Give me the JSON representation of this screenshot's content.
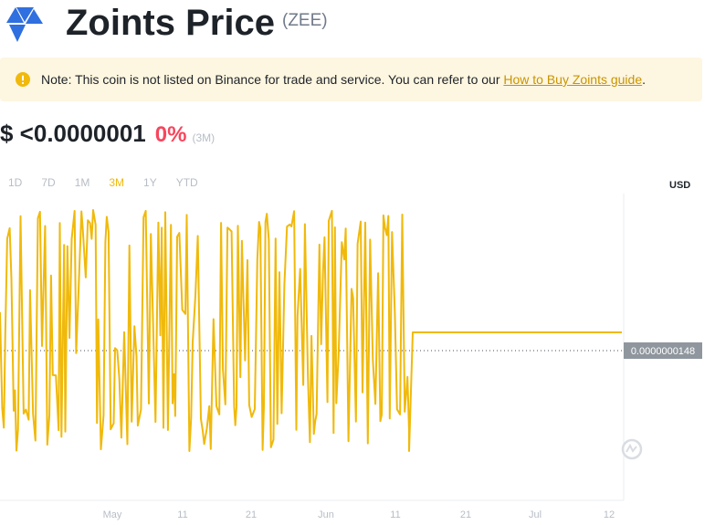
{
  "header": {
    "title": "Zoints Price",
    "symbol": "(ZEE)",
    "logo_icon": "zoints-logo-icon",
    "brand_color": "#2f6fe0"
  },
  "notice": {
    "icon": "warning-icon",
    "text": "Note: This coin is not listed on Binance for trade and service. You can refer to our ",
    "link": "How to Buy Zoints guide",
    "suffix": "."
  },
  "price": {
    "value": "$ <0.0000001",
    "change": "0%",
    "period": "(3M)"
  },
  "ranges": [
    {
      "label": "1D",
      "active": false
    },
    {
      "label": "7D",
      "active": false
    },
    {
      "label": "1M",
      "active": false
    },
    {
      "label": "3M",
      "active": true
    },
    {
      "label": "1Y",
      "active": false
    },
    {
      "label": "YTD",
      "active": false
    }
  ],
  "currency": "USD",
  "colors": {
    "line": "#f0b90b",
    "down": "#f6465d",
    "price_label_bg": "#8f969e"
  },
  "chart_data": {
    "type": "line",
    "x_tick_labels": [
      "May",
      "11",
      "21",
      "Jun",
      "11",
      "21",
      "Jul",
      "12"
    ],
    "current_price_label": "0.0000000148",
    "grid": false,
    "legend": "none"
  }
}
